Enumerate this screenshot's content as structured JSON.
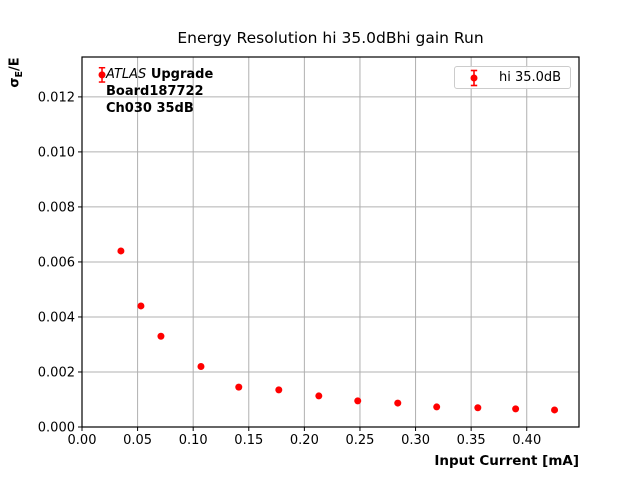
{
  "chart_data": {
    "type": "scatter",
    "title": "Energy Resolution hi 35.0dBhi gain Run",
    "xlabel": "Input Current [mA]",
    "ylabel": "σE/E",
    "ylabel_parts": {
      "sigma": "σ",
      "subscript": "E",
      "rest": "/E"
    },
    "xlim": [
      0,
      0.447
    ],
    "ylim": [
      0,
      0.01345
    ],
    "grid": true,
    "legend_position": "upper right",
    "xtick_values": [
      0,
      0.05,
      0.1,
      0.15,
      0.2,
      0.25,
      0.3,
      0.35,
      0.4
    ],
    "xtick_labels": [
      "0.00",
      "0.05",
      "0.10",
      "0.15",
      "0.20",
      "0.25",
      "0.30",
      "0.35",
      "0.40"
    ],
    "ytick_values": [
      0,
      0.002,
      0.004,
      0.006,
      0.008,
      0.01,
      0.012
    ],
    "ytick_labels": [
      "0.000",
      "0.002",
      "0.004",
      "0.006",
      "0.008",
      "0.010",
      "0.012"
    ],
    "legend": {
      "label": "hi 35.0dB"
    },
    "series": [
      {
        "name": "hi 35.0dB",
        "color": "#ff0000",
        "marker": "circle-with-errorbar",
        "x": [
          0.018,
          0.035,
          0.053,
          0.071,
          0.107,
          0.141,
          0.177,
          0.213,
          0.248,
          0.284,
          0.319,
          0.356,
          0.39,
          0.425
        ],
        "y": [
          0.0128,
          0.0064,
          0.0044,
          0.0033,
          0.0022,
          0.00145,
          0.00135,
          0.00113,
          0.00095,
          0.00087,
          0.00073,
          0.0007,
          0.00066,
          0.00062
        ],
        "yerr": [
          0.00026,
          0,
          0,
          0,
          0,
          0,
          0,
          0,
          0,
          0,
          0,
          0,
          0,
          0
        ]
      }
    ],
    "annotation": {
      "line1_italic": "ATLAS",
      "line1_bold": "Upgrade",
      "line2": "Board187722",
      "line3": "Ch030 35dB"
    },
    "colors": {
      "marker": "#ff0000",
      "grid": "#b0b0b0",
      "spine": "#000000",
      "legend_border": "#cccccc",
      "background": "#ffffff"
    }
  }
}
